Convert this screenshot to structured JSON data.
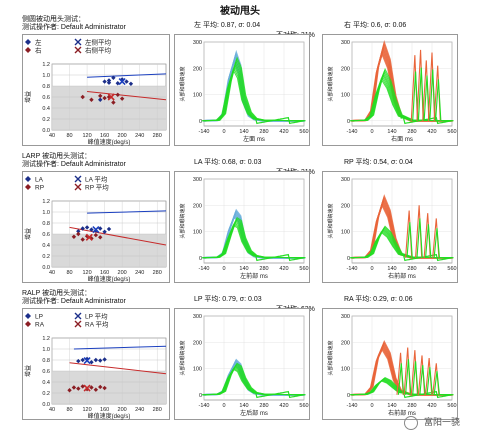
{
  "page_title": "被动甩头",
  "watermark": "富阳一骁",
  "common": {
    "scatter_x_label": "峰值速度(deg/s)",
    "scatter_y_label": "增益",
    "trace_y_label": "头部和眼睛速度",
    "x_unit": "ms"
  },
  "rows": [
    {
      "test_title": "侧圆被动甩头测试：",
      "operator": "测试操作者: Default Administrator",
      "left_gain": "左 平均: 0.87, σ: 0.04",
      "right_gain": "右 平均: 0.6, σ: 0.06",
      "asymmetry": "不对称: 31%",
      "left_trace_label": "左面 ms",
      "right_trace_label": "右面 ms",
      "legend": [
        "左",
        "右",
        "左侧平均",
        "右侧平均"
      ]
    },
    {
      "test_title": "LARP 被动甩头测试：",
      "operator": "测试操作者: Default Administrator",
      "left_gain": "LA 平均: 0.68, σ: 0.03",
      "right_gain": "RP 平均: 0.54, σ: 0.04",
      "asymmetry": "不对称: 21%",
      "left_trace_label": "左前部 ms",
      "right_trace_label": "右前部 ms",
      "legend": [
        "LA",
        "RP",
        "LA 平均",
        "RP 平均"
      ]
    },
    {
      "test_title": "RALP 被动甩头测试：",
      "operator": "测试操作者: Default Administrator",
      "left_gain": "LP 平均: 0.79, σ: 0.03",
      "right_gain": "RA 平均: 0.29, σ: 0.06",
      "asymmetry": "不对称: 63%",
      "left_trace_label": "左后部 ms",
      "right_trace_label": "右前部 ms",
      "legend": [
        "LP",
        "RA",
        "LP 平均",
        "RA 平均"
      ]
    }
  ],
  "colors": {
    "left_marker": "#1c2f8a",
    "right_marker": "#8b1e24",
    "head_trace_left": "#6aaedb",
    "head_trace_right": "#e9643a",
    "eye_trace": "#22dd22",
    "normal_band": "#d9d9d9",
    "left_mean_line": "#1a3fbf",
    "right_mean_line": "#c62a2a"
  },
  "chart_data": [
    {
      "type": "scatter",
      "panel": "row1-gain",
      "x_ticks": [
        40,
        80,
        120,
        160,
        200,
        240,
        280
      ],
      "y_ticks": [
        0.0,
        0.2,
        0.4,
        0.6,
        0.8,
        1.0,
        1.2
      ],
      "xlim": [
        40,
        300
      ],
      "ylim": [
        0,
        1.2
      ],
      "normal_band": [
        0,
        0.8
      ],
      "series": [
        {
          "name": "左",
          "marker": "diamond",
          "x": [
            150,
            160,
            170,
            180,
            190,
            200,
            210,
            220,
            170
          ],
          "y": [
            0.55,
            0.88,
            0.9,
            0.95,
            0.85,
            0.92,
            0.88,
            0.84,
            0.86
          ]
        },
        {
          "name": "右",
          "marker": "diamond",
          "x": [
            110,
            130,
            150,
            160,
            170,
            180,
            190,
            200
          ],
          "y": [
            0.6,
            0.55,
            0.62,
            0.58,
            0.6,
            0.5,
            0.64,
            0.57
          ]
        }
      ],
      "means": [
        {
          "name": "左侧平均",
          "x": 200,
          "y": 0.88,
          "line": [
            [
              120,
              0.96
            ],
            [
              300,
              1.02
            ]
          ]
        },
        {
          "name": "右侧平均",
          "x": 175,
          "y": 0.6,
          "line": [
            [
              120,
              0.7
            ],
            [
              300,
              0.55
            ]
          ]
        }
      ]
    },
    {
      "type": "line",
      "panel": "row1-left-trace",
      "x_ticks": [
        -140,
        0,
        140,
        280,
        420,
        560
      ],
      "y_ticks": [
        0,
        100,
        200,
        300
      ],
      "xlim": [
        -140,
        560
      ],
      "ylim": [
        -20,
        300
      ],
      "head": {
        "x": [
          -140,
          -40,
          0,
          40,
          80,
          110,
          140,
          180,
          220,
          280,
          560
        ],
        "y": [
          0,
          2,
          30,
          170,
          245,
          200,
          80,
          20,
          5,
          0,
          0
        ]
      },
      "eye": {
        "x": [
          -140,
          -40,
          0,
          40,
          80,
          110,
          140,
          180,
          220,
          280,
          560
        ],
        "y": [
          0,
          2,
          25,
          140,
          220,
          185,
          90,
          30,
          8,
          2,
          0
        ]
      }
    },
    {
      "type": "line",
      "panel": "row1-right-trace",
      "x_ticks": [
        -140,
        0,
        140,
        280,
        420,
        560
      ],
      "y_ticks": [
        0,
        100,
        200,
        300
      ],
      "xlim": [
        -140,
        560
      ],
      "ylim": [
        -20,
        300
      ],
      "head": {
        "x": [
          -140,
          -40,
          0,
          40,
          80,
          120,
          160,
          200,
          280,
          560
        ],
        "y": [
          0,
          2,
          40,
          200,
          280,
          220,
          90,
          20,
          0,
          0
        ]
      },
      "eye": {
        "x": [
          -140,
          -40,
          0,
          40,
          80,
          120,
          160,
          200,
          280,
          560
        ],
        "y": [
          0,
          2,
          20,
          110,
          180,
          140,
          70,
          20,
          2,
          0
        ]
      },
      "saccades": [
        {
          "x": 300,
          "peak": 250
        },
        {
          "x": 340,
          "peak": 270
        },
        {
          "x": 380,
          "peak": 230
        },
        {
          "x": 420,
          "peak": 260
        },
        {
          "x": 460,
          "peak": 210
        }
      ]
    },
    {
      "type": "scatter",
      "panel": "row2-gain",
      "x_ticks": [
        40,
        80,
        120,
        160,
        200,
        240,
        280
      ],
      "y_ticks": [
        0.0,
        0.2,
        0.4,
        0.6,
        0.8,
        1.0,
        1.2
      ],
      "xlim": [
        40,
        300
      ],
      "ylim": [
        0,
        1.2
      ],
      "normal_band": [
        0,
        0.6
      ],
      "series": [
        {
          "name": "LA",
          "marker": "diamond",
          "x": [
            100,
            110,
            120,
            130,
            140,
            150,
            160,
            170
          ],
          "y": [
            0.65,
            0.7,
            0.72,
            0.68,
            0.66,
            0.7,
            0.64,
            0.69
          ]
        },
        {
          "name": "RP",
          "marker": "diamond",
          "x": [
            90,
            100,
            110,
            120,
            130,
            140,
            150
          ],
          "y": [
            0.55,
            0.6,
            0.5,
            0.56,
            0.52,
            0.58,
            0.54
          ]
        }
      ],
      "means": [
        {
          "name": "LA 平均",
          "x": 140,
          "y": 0.68,
          "line": [
            [
              120,
              0.98
            ],
            [
              300,
              1.02
            ]
          ]
        },
        {
          "name": "RP 平均",
          "x": 125,
          "y": 0.54,
          "line": [
            [
              80,
              0.72
            ],
            [
              300,
              0.4
            ]
          ]
        }
      ]
    },
    {
      "type": "line",
      "panel": "row2-left-trace",
      "x_ticks": [
        -140,
        0,
        140,
        280,
        420,
        560
      ],
      "y_ticks": [
        0,
        100,
        200,
        300
      ],
      "xlim": [
        -140,
        560
      ],
      "ylim": [
        -20,
        300
      ],
      "head": {
        "x": [
          -140,
          -40,
          0,
          40,
          80,
          110,
          140,
          180,
          220,
          280,
          560
        ],
        "y": [
          0,
          2,
          20,
          110,
          170,
          150,
          70,
          20,
          5,
          0,
          0
        ]
      },
      "eye": {
        "x": [
          -140,
          -40,
          0,
          40,
          80,
          110,
          140,
          180,
          220,
          280,
          560
        ],
        "y": [
          0,
          2,
          15,
          80,
          140,
          130,
          70,
          25,
          8,
          2,
          0
        ]
      }
    },
    {
      "type": "line",
      "panel": "row2-right-trace",
      "x_ticks": [
        -140,
        0,
        140,
        280,
        420,
        560
      ],
      "y_ticks": [
        0,
        100,
        200,
        300
      ],
      "xlim": [
        -140,
        560
      ],
      "ylim": [
        -20,
        300
      ],
      "head": {
        "x": [
          -140,
          -40,
          0,
          40,
          80,
          120,
          160,
          200,
          280,
          560
        ],
        "y": [
          0,
          2,
          30,
          150,
          220,
          170,
          70,
          15,
          0,
          0
        ]
      },
      "eye": {
        "x": [
          -140,
          -40,
          0,
          40,
          80,
          120,
          160,
          200,
          280,
          560
        ],
        "y": [
          0,
          2,
          15,
          70,
          110,
          90,
          50,
          15,
          2,
          0
        ]
      },
      "saccades": [
        {
          "x": 260,
          "peak": 180
        },
        {
          "x": 330,
          "peak": 200
        },
        {
          "x": 390,
          "peak": 170
        },
        {
          "x": 450,
          "peak": 150
        }
      ]
    },
    {
      "type": "scatter",
      "panel": "row3-gain",
      "x_ticks": [
        40,
        80,
        120,
        160,
        200,
        240,
        280
      ],
      "y_ticks": [
        0.0,
        0.2,
        0.4,
        0.6,
        0.8,
        1.0,
        1.2
      ],
      "xlim": [
        40,
        300
      ],
      "ylim": [
        0,
        1.2
      ],
      "normal_band": [
        0,
        0.6
      ],
      "series": [
        {
          "name": "LP",
          "marker": "diamond",
          "x": [
            100,
            110,
            120,
            130,
            140,
            150,
            160
          ],
          "y": [
            0.78,
            0.8,
            0.82,
            0.76,
            0.8,
            0.79,
            0.81
          ]
        },
        {
          "name": "RA",
          "marker": "diamond",
          "x": [
            80,
            90,
            100,
            110,
            120,
            130,
            140,
            150,
            160
          ],
          "y": [
            0.25,
            0.3,
            0.28,
            0.32,
            0.27,
            0.3,
            0.26,
            0.31,
            0.29
          ]
        }
      ],
      "means": [
        {
          "name": "LP 平均",
          "x": 120,
          "y": 0.79,
          "line": [
            [
              90,
              1.0
            ],
            [
              300,
              1.05
            ]
          ]
        },
        {
          "name": "RA 平均",
          "x": 120,
          "y": 0.29,
          "line": [
            [
              80,
              0.75
            ],
            [
              300,
              0.55
            ]
          ]
        }
      ]
    },
    {
      "type": "line",
      "panel": "row3-left-trace",
      "x_ticks": [
        -140,
        0,
        140,
        280,
        420,
        560
      ],
      "y_ticks": [
        0,
        100,
        200,
        300
      ],
      "xlim": [
        -140,
        560
      ],
      "ylim": [
        -20,
        300
      ],
      "head": {
        "x": [
          -140,
          -40,
          0,
          40,
          80,
          110,
          140,
          180,
          220,
          280,
          560
        ],
        "y": [
          0,
          2,
          15,
          80,
          125,
          110,
          60,
          20,
          5,
          0,
          0
        ]
      },
      "eye": {
        "x": [
          -140,
          -40,
          0,
          40,
          80,
          110,
          140,
          180,
          220,
          280,
          560
        ],
        "y": [
          0,
          2,
          12,
          70,
          110,
          100,
          60,
          25,
          8,
          2,
          0
        ]
      }
    },
    {
      "type": "line",
      "panel": "row3-right-trace",
      "x_ticks": [
        -140,
        0,
        140,
        280,
        420,
        560
      ],
      "y_ticks": [
        0,
        100,
        200,
        300
      ],
      "xlim": [
        -140,
        560
      ],
      "ylim": [
        -20,
        300
      ],
      "head": {
        "x": [
          -140,
          -40,
          0,
          40,
          80,
          120,
          160,
          200,
          280,
          560
        ],
        "y": [
          0,
          2,
          30,
          140,
          190,
          150,
          60,
          15,
          0,
          0
        ]
      },
      "eye": {
        "x": [
          -140,
          -40,
          0,
          40,
          80,
          120,
          160,
          200,
          280,
          560
        ],
        "y": [
          0,
          2,
          10,
          40,
          60,
          50,
          30,
          10,
          2,
          0
        ]
      },
      "saccades": [
        {
          "x": 200,
          "peak": 160
        },
        {
          "x": 250,
          "peak": 180
        },
        {
          "x": 300,
          "peak": 170
        },
        {
          "x": 350,
          "peak": 150
        },
        {
          "x": 400,
          "peak": 140
        },
        {
          "x": 450,
          "peak": 120
        }
      ]
    }
  ]
}
